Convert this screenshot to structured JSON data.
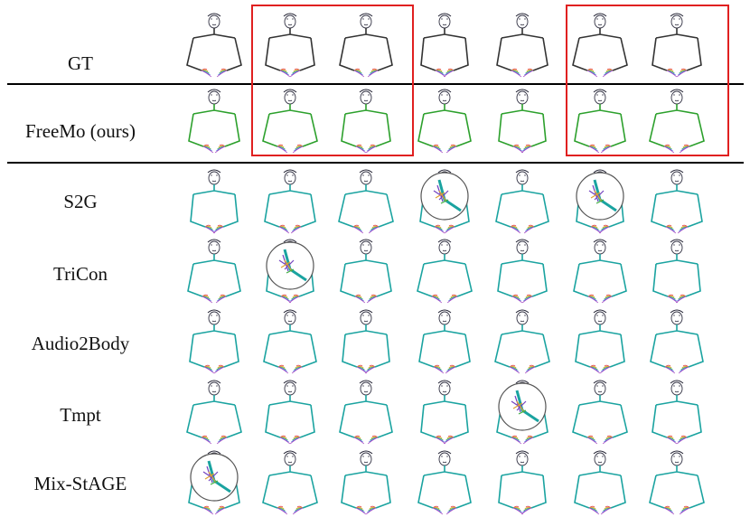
{
  "figure": {
    "rows": [
      {
        "key": "gt",
        "label": "GT",
        "color": "#333333"
      },
      {
        "key": "freemo",
        "label": "FreeMo (ours)",
        "color": "#2ca02c"
      },
      {
        "key": "s2g",
        "label": "S2G",
        "color": "#1aa3a0"
      },
      {
        "key": "tricon",
        "label": "TriCon",
        "color": "#1aa3a0"
      },
      {
        "key": "audio2body",
        "label": "Audio2Body",
        "color": "#1aa3a0"
      },
      {
        "key": "tmpt",
        "label": "Tmpt",
        "color": "#1aa3a0"
      },
      {
        "key": "mixstage",
        "label": "Mix-StAGE",
        "color": "#1aa3a0"
      }
    ],
    "columns": 7,
    "highlighted_column_groups": [
      [
        1,
        2
      ],
      [
        5,
        6
      ]
    ],
    "highlight_color": "#e02020",
    "zoomed_failures": [
      {
        "row": "s2g",
        "column": 3
      },
      {
        "row": "s2g",
        "column": 5
      },
      {
        "row": "tricon",
        "column": 1
      },
      {
        "row": "tmpt",
        "column": 4
      },
      {
        "row": "mixstage",
        "column": 0
      }
    ]
  }
}
